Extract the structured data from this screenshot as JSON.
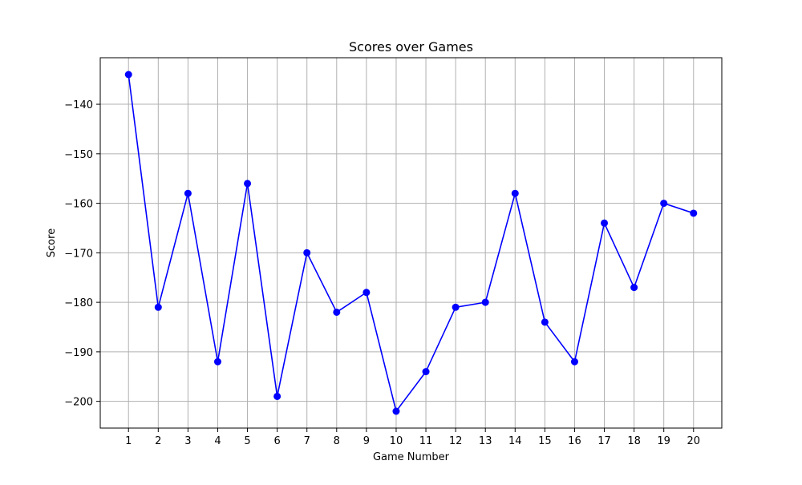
{
  "chart_data": {
    "type": "line",
    "title": "Scores over Games",
    "xlabel": "Game Number",
    "ylabel": "Score",
    "x": [
      1,
      2,
      3,
      4,
      5,
      6,
      7,
      8,
      9,
      10,
      11,
      12,
      13,
      14,
      15,
      16,
      17,
      18,
      19,
      20
    ],
    "series": [
      {
        "values": [
          -134,
          -181,
          -158,
          -192,
          -156,
          -199,
          -170,
          -182,
          -178,
          -202,
          -194,
          -181,
          -180,
          -158,
          -184,
          -192,
          -164,
          -177,
          -160,
          -162
        ],
        "color": "#0000ff",
        "marker": "circle"
      }
    ],
    "xlim": [
      0.05,
      20.95
    ],
    "ylim": [
      -205.4,
      -130.6
    ],
    "xticks": [
      1,
      2,
      3,
      4,
      5,
      6,
      7,
      8,
      9,
      10,
      11,
      12,
      13,
      14,
      15,
      16,
      17,
      18,
      19,
      20
    ],
    "yticks": [
      -200,
      -190,
      -180,
      -170,
      -160,
      -150,
      -140
    ],
    "grid": true,
    "grid_color": "#b0b0b0"
  }
}
